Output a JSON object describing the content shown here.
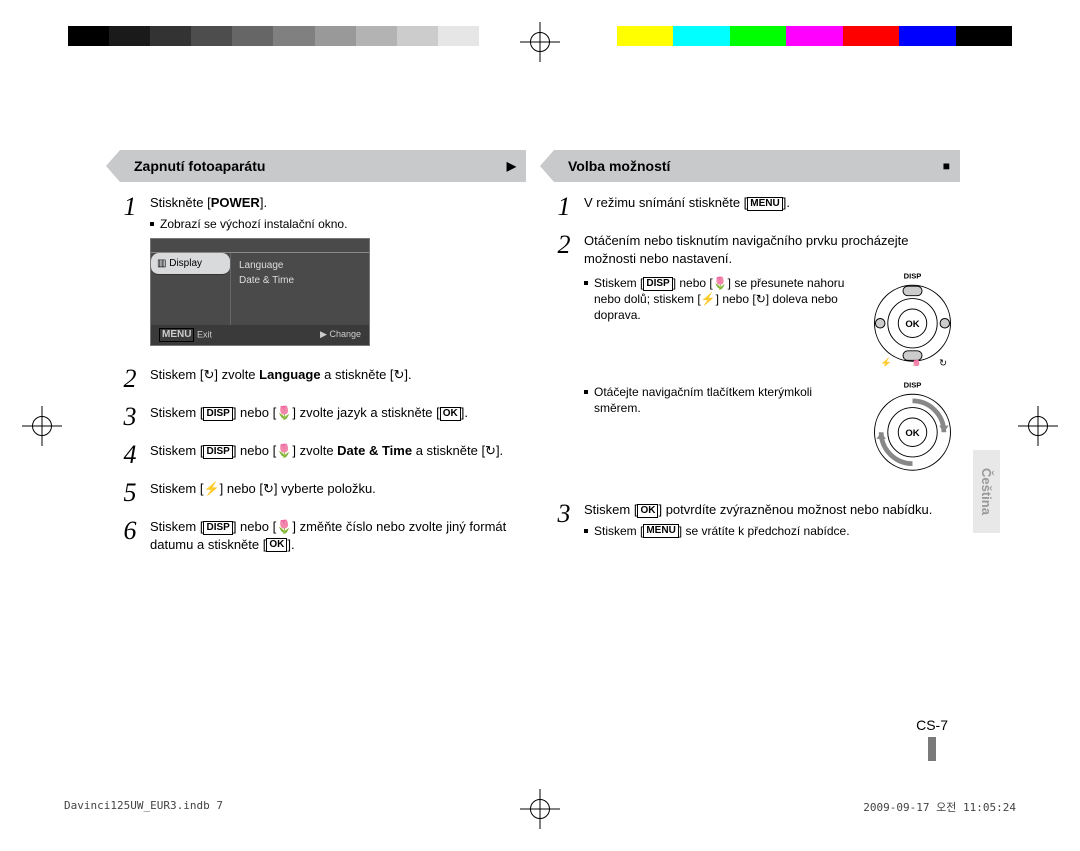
{
  "colorbar": {
    "left": [
      "#000000",
      "#1a1a1a",
      "#333333",
      "#4d4d4d",
      "#666666",
      "#808080",
      "#999999",
      "#b3b3b3",
      "#cccccc",
      "#e6e6e6",
      "#ffffff"
    ],
    "right": [
      "#ffffff",
      "#ffff00",
      "#00ffff",
      "#00ff00",
      "#ff00ff",
      "#ff0000",
      "#0000ff",
      "#000000"
    ]
  },
  "leftCol": {
    "heading": "Zapnutí fotoaparátu",
    "headingGlyph": "▶",
    "steps": {
      "s1": {
        "text_a": "Stiskněte [",
        "bold": "POWER",
        "text_b": "].",
        "sub": "Zobrazí se výchozí instalační okno."
      },
      "s2": {
        "text": "Stiskem [↻] zvolte Language a stiskněte [↻].",
        "bold1": "Language"
      },
      "s3": {
        "text": "Stiskem [DISP] nebo [🌷] zvolte jazyk a stiskněte [OK].",
        "disp": "DISP",
        "ok": "OK"
      },
      "s4": {
        "text": "Stiskem [DISP] nebo [🌷] zvolte Date & Time a stiskněte [↻].",
        "bold1": "Date & Time"
      },
      "s5": {
        "text": "Stiskem [⚡] nebo [↻] vyberte položku."
      },
      "s6": {
        "text": "Stiskem [DISP] nebo [🌷] změňte číslo nebo zvolte jiný formát datumu a stiskněte [OK]."
      }
    },
    "lcd": {
      "sidebar_icon": "▥",
      "sidebar_selected": "Display",
      "menu1": "Language",
      "menu2": "Date & Time",
      "exit_key": "MENU",
      "exit_label": "Exit",
      "change_glyph": "▶",
      "change_label": "Change"
    }
  },
  "rightCol": {
    "heading": "Volba možností",
    "headingGlyph": "■",
    "steps": {
      "s1": {
        "text": "V režimu snímání stiskněte [MENU].",
        "menu": "MENU"
      },
      "s2": {
        "text": "Otáčením nebo tisknutím navigačního prvku procházejte možnosti nebo nastavení.",
        "sub1": "Stiskem [DISP] nebo [🌷] se přesunete nahoru nebo dolů; stiskem [⚡] nebo [↻] doleva nebo doprava.",
        "sub2": "Otáčejte navigačním tlačítkem kterýmkoli směrem."
      },
      "s3": {
        "text": "Stiskem [OK] potvrdíte zvýrazněnou možnost nebo nabídku.",
        "sub": "Stiskem [MENU] se vrátíte k předchozí nabídce."
      }
    },
    "wheel": {
      "disp": "DISP",
      "ok": "OK",
      "flash": "⚡",
      "flower": "🌷",
      "timer": "↻"
    }
  },
  "sideTab": "Čeština",
  "pageNumber": "CS-7",
  "footer": {
    "left": "Davinci125UW_EUR3.indb   7",
    "right": "2009-09-17   오전 11:05:24"
  }
}
